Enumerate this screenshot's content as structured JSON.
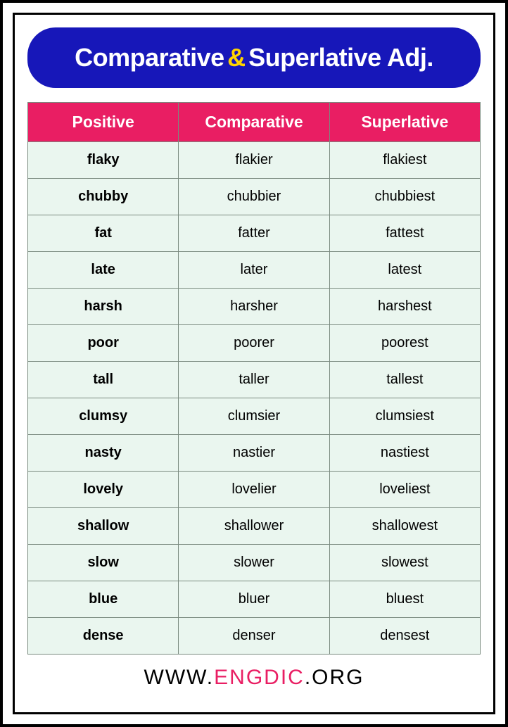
{
  "title": {
    "part1": "Comparative",
    "amp": "&",
    "part2": "Superlative Adj."
  },
  "title_styles": {
    "background_color": "#1717b9",
    "text_color": "#ffffff",
    "amp_color": "#ffd400",
    "font_size": 36,
    "border_radius": 40
  },
  "table": {
    "type": "table",
    "header_background": "#e91e63",
    "header_text_color": "#ffffff",
    "cell_background": "#eaf6ef",
    "border_color": "#7a8a7f",
    "header_font_size": 23,
    "cell_font_size": 20,
    "columns": [
      "Positive",
      "Comparative",
      "Superlative"
    ],
    "rows": [
      {
        "positive": "flaky",
        "comparative": "flakier",
        "superlative": "flakiest"
      },
      {
        "positive": "chubby",
        "comparative": "chubbier",
        "superlative": "chubbiest"
      },
      {
        "positive": "fat",
        "comparative": "fatter",
        "superlative": "fattest"
      },
      {
        "positive": "late",
        "comparative": "later",
        "superlative": "latest"
      },
      {
        "positive": "harsh",
        "comparative": "harsher",
        "superlative": "harshest"
      },
      {
        "positive": "poor",
        "comparative": "poorer",
        "superlative": "poorest"
      },
      {
        "positive": "tall",
        "comparative": "taller",
        "superlative": "tallest"
      },
      {
        "positive": "clumsy",
        "comparative": "clumsier",
        "superlative": "clumsiest"
      },
      {
        "positive": "nasty",
        "comparative": "nastier",
        "superlative": "nastiest"
      },
      {
        "positive": "lovely",
        "comparative": "lovelier",
        "superlative": "loveliest"
      },
      {
        "positive": "shallow",
        "comparative": "shallower",
        "superlative": "shallowest"
      },
      {
        "positive": "slow",
        "comparative": "slower",
        "superlative": "slowest"
      },
      {
        "positive": "blue",
        "comparative": "bluer",
        "superlative": "bluest"
      },
      {
        "positive": "dense",
        "comparative": "denser",
        "superlative": "densest"
      }
    ]
  },
  "footer": {
    "prefix": "WWW.",
    "brand": "ENGDIC",
    "suffix": ".ORG",
    "brand_color": "#e91e63",
    "text_color": "#000000",
    "font_size": 30
  },
  "frame": {
    "outer_border_color": "#000000",
    "outer_border_width": 4,
    "inner_border_color": "#000000",
    "inner_border_width": 3,
    "background_color": "#ffffff"
  }
}
